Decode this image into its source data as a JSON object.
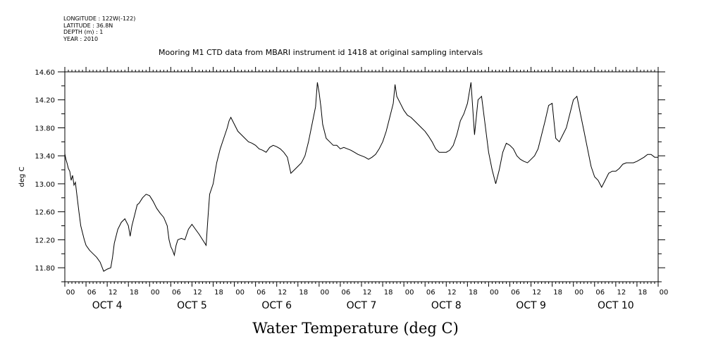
{
  "header": {
    "longitude": "LONGITUDE : 122W(-122)",
    "latitude": "LATITUDE : 36.8N",
    "depth": "DEPTH (m) : 1",
    "year": "YEAR : 2010"
  },
  "chart_data": {
    "type": "line",
    "title": "Mooring M1 CTD data from MBARI instrument id 1418 at original sampling intervals",
    "xlabel": "Water Temperature (deg C)",
    "ylabel": "deg C",
    "ylim": [
      11.6,
      14.6
    ],
    "yticks": [
      "11.80",
      "12.20",
      "12.60",
      "13.00",
      "13.40",
      "13.80",
      "14.20",
      "14.60"
    ],
    "xlim_hours": [
      0,
      168
    ],
    "hour_tick_labels": [
      "00",
      "06",
      "12",
      "18"
    ],
    "day_labels": [
      "OCT 4",
      "OCT 5",
      "OCT 6",
      "OCT 7",
      "OCT 8",
      "OCT 9",
      "OCT 10"
    ],
    "grid": false,
    "series": [
      {
        "values_hour_temp": [
          [
            0.0,
            13.43
          ],
          [
            0.3,
            13.35
          ],
          [
            0.6,
            13.3
          ],
          [
            1.0,
            13.22
          ],
          [
            1.4,
            13.18
          ],
          [
            1.8,
            13.05
          ],
          [
            2.2,
            13.12
          ],
          [
            2.6,
            12.98
          ],
          [
            3.0,
            13.02
          ],
          [
            3.4,
            12.85
          ],
          [
            4.0,
            12.6
          ],
          [
            4.5,
            12.4
          ],
          [
            5.0,
            12.3
          ],
          [
            5.5,
            12.2
          ],
          [
            6.0,
            12.12
          ],
          [
            7.0,
            12.05
          ],
          [
            8.0,
            12.0
          ],
          [
            9.0,
            11.95
          ],
          [
            10.0,
            11.88
          ],
          [
            11.0,
            11.75
          ],
          [
            12.0,
            11.78
          ],
          [
            13.0,
            11.8
          ],
          [
            13.5,
            11.95
          ],
          [
            14.0,
            12.15
          ],
          [
            15.0,
            12.35
          ],
          [
            16.0,
            12.45
          ],
          [
            17.0,
            12.5
          ],
          [
            18.0,
            12.4
          ],
          [
            18.5,
            12.25
          ],
          [
            19.0,
            12.4
          ],
          [
            20.0,
            12.6
          ],
          [
            20.5,
            12.7
          ],
          [
            21.0,
            12.72
          ],
          [
            22.0,
            12.8
          ],
          [
            23.0,
            12.85
          ],
          [
            24.0,
            12.83
          ],
          [
            25.0,
            12.75
          ],
          [
            26.0,
            12.65
          ],
          [
            27.0,
            12.58
          ],
          [
            28.0,
            12.52
          ],
          [
            29.0,
            12.4
          ],
          [
            29.5,
            12.2
          ],
          [
            30.0,
            12.1
          ],
          [
            30.5,
            12.05
          ],
          [
            31.0,
            11.98
          ],
          [
            31.5,
            12.12
          ],
          [
            32.0,
            12.2
          ],
          [
            33.0,
            12.22
          ],
          [
            34.0,
            12.2
          ],
          [
            35.0,
            12.35
          ],
          [
            36.0,
            12.42
          ],
          [
            37.0,
            12.35
          ],
          [
            38.0,
            12.28
          ],
          [
            39.0,
            12.2
          ],
          [
            40.0,
            12.12
          ],
          [
            40.5,
            12.5
          ],
          [
            41.0,
            12.85
          ],
          [
            42.0,
            13.0
          ],
          [
            43.0,
            13.3
          ],
          [
            44.0,
            13.5
          ],
          [
            45.0,
            13.65
          ],
          [
            46.0,
            13.8
          ],
          [
            46.5,
            13.9
          ],
          [
            47.0,
            13.95
          ],
          [
            48.0,
            13.85
          ],
          [
            49.0,
            13.75
          ],
          [
            50.0,
            13.7
          ],
          [
            51.0,
            13.65
          ],
          [
            52.0,
            13.6
          ],
          [
            53.0,
            13.58
          ],
          [
            54.0,
            13.55
          ],
          [
            55.0,
            13.5
          ],
          [
            56.0,
            13.48
          ],
          [
            57.0,
            13.45
          ],
          [
            58.0,
            13.52
          ],
          [
            59.0,
            13.55
          ],
          [
            60.0,
            13.53
          ],
          [
            61.0,
            13.5
          ],
          [
            62.0,
            13.45
          ],
          [
            63.0,
            13.38
          ],
          [
            64.0,
            13.15
          ],
          [
            65.0,
            13.2
          ],
          [
            66.0,
            13.25
          ],
          [
            67.0,
            13.3
          ],
          [
            68.0,
            13.4
          ],
          [
            69.0,
            13.6
          ],
          [
            70.0,
            13.85
          ],
          [
            71.0,
            14.1
          ],
          [
            71.5,
            14.45
          ],
          [
            72.0,
            14.3
          ],
          [
            72.5,
            14.1
          ],
          [
            73.0,
            13.85
          ],
          [
            74.0,
            13.65
          ],
          [
            75.0,
            13.6
          ],
          [
            76.0,
            13.55
          ],
          [
            77.0,
            13.55
          ],
          [
            78.0,
            13.5
          ],
          [
            79.0,
            13.52
          ],
          [
            80.0,
            13.5
          ],
          [
            81.0,
            13.48
          ],
          [
            82.0,
            13.45
          ],
          [
            83.0,
            13.42
          ],
          [
            84.0,
            13.4
          ],
          [
            85.0,
            13.38
          ],
          [
            86.0,
            13.35
          ],
          [
            87.0,
            13.38
          ],
          [
            88.0,
            13.42
          ],
          [
            89.0,
            13.5
          ],
          [
            90.0,
            13.6
          ],
          [
            91.0,
            13.75
          ],
          [
            92.0,
            13.95
          ],
          [
            93.0,
            14.15
          ],
          [
            93.5,
            14.42
          ],
          [
            94.0,
            14.25
          ],
          [
            95.0,
            14.15
          ],
          [
            96.0,
            14.05
          ],
          [
            97.0,
            13.98
          ],
          [
            98.0,
            13.95
          ],
          [
            99.0,
            13.9
          ],
          [
            100.0,
            13.85
          ],
          [
            101.0,
            13.8
          ],
          [
            102.0,
            13.75
          ],
          [
            103.0,
            13.68
          ],
          [
            104.0,
            13.6
          ],
          [
            105.0,
            13.5
          ],
          [
            106.0,
            13.45
          ],
          [
            107.0,
            13.45
          ],
          [
            108.0,
            13.45
          ],
          [
            109.0,
            13.48
          ],
          [
            110.0,
            13.55
          ],
          [
            111.0,
            13.7
          ],
          [
            112.0,
            13.9
          ],
          [
            113.0,
            14.0
          ],
          [
            114.0,
            14.15
          ],
          [
            115.0,
            14.45
          ],
          [
            116.0,
            13.7
          ],
          [
            117.0,
            14.2
          ],
          [
            118.0,
            14.25
          ],
          [
            119.0,
            13.85
          ],
          [
            120.0,
            13.45
          ],
          [
            121.0,
            13.2
          ],
          [
            122.0,
            13.0
          ],
          [
            123.0,
            13.2
          ],
          [
            124.0,
            13.45
          ],
          [
            125.0,
            13.58
          ],
          [
            126.0,
            13.55
          ],
          [
            127.0,
            13.5
          ],
          [
            128.0,
            13.4
          ],
          [
            129.0,
            13.35
          ],
          [
            130.0,
            13.32
          ],
          [
            131.0,
            13.3
          ],
          [
            132.0,
            13.35
          ],
          [
            133.0,
            13.4
          ],
          [
            134.0,
            13.5
          ],
          [
            135.0,
            13.7
          ],
          [
            136.0,
            13.9
          ],
          [
            137.0,
            14.12
          ],
          [
            138.0,
            14.15
          ],
          [
            138.5,
            13.9
          ],
          [
            139.0,
            13.65
          ],
          [
            140.0,
            13.6
          ],
          [
            141.0,
            13.7
          ],
          [
            142.0,
            13.8
          ],
          [
            143.0,
            14.0
          ],
          [
            144.0,
            14.2
          ],
          [
            145.0,
            14.25
          ],
          [
            146.0,
            14.0
          ],
          [
            147.0,
            13.75
          ],
          [
            148.0,
            13.5
          ],
          [
            149.0,
            13.25
          ],
          [
            150.0,
            13.1
          ],
          [
            151.0,
            13.05
          ],
          [
            152.0,
            12.95
          ],
          [
            153.0,
            13.05
          ],
          [
            154.0,
            13.15
          ],
          [
            155.0,
            13.18
          ],
          [
            156.0,
            13.18
          ],
          [
            157.0,
            13.22
          ],
          [
            158.0,
            13.28
          ],
          [
            159.0,
            13.3
          ],
          [
            160.0,
            13.3
          ],
          [
            161.0,
            13.3
          ],
          [
            162.0,
            13.32
          ],
          [
            163.0,
            13.35
          ],
          [
            164.0,
            13.38
          ],
          [
            165.0,
            13.42
          ],
          [
            166.0,
            13.42
          ],
          [
            167.0,
            13.38
          ],
          [
            168.0,
            13.38
          ]
        ]
      }
    ]
  },
  "colors": {
    "line": "#000000",
    "axis": "#000000",
    "background": "#ffffff"
  }
}
